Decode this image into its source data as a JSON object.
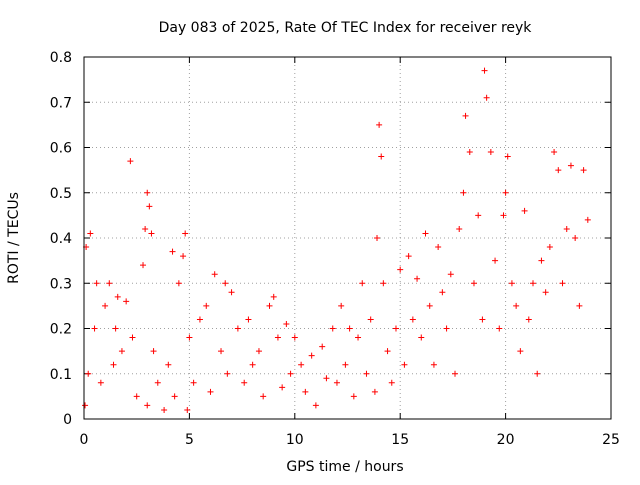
{
  "chart_data": {
    "type": "scatter",
    "title": "Day 083 of 2025, Rate Of TEC Index for receiver reyk",
    "xlabel": "GPS time / hours",
    "ylabel": "ROTI / TECUs",
    "xlim": [
      0,
      25
    ],
    "ylim": [
      0,
      0.8
    ],
    "x_ticks": [
      0,
      5,
      10,
      15,
      20,
      25
    ],
    "x_tick_labels": [
      "0",
      "5",
      "10",
      "15",
      "20",
      "25"
    ],
    "y_ticks": [
      0,
      0.1,
      0.2,
      0.3,
      0.4,
      0.5,
      0.6,
      0.7,
      0.8
    ],
    "y_tick_labels": [
      "0",
      "0.1",
      "0.2",
      "0.3",
      "0.4",
      "0.5",
      "0.6",
      "0.7",
      "0.8"
    ],
    "grid": true,
    "marker": "+",
    "marker_color": "#ff0000",
    "series": [
      {
        "x": [
          0.05,
          0.1,
          0.2,
          0.3,
          0.5,
          0.6,
          0.8,
          1.0,
          1.2,
          1.4,
          1.5,
          1.6,
          1.8,
          2.0,
          2.2,
          2.3,
          2.5,
          2.8,
          2.9,
          3.0,
          3.0,
          3.1,
          3.2,
          3.3,
          3.5,
          3.8,
          4.0,
          4.2,
          4.3,
          4.5,
          4.7,
          4.8,
          4.9,
          5.0,
          5.2,
          5.5,
          5.8,
          6.0,
          6.2,
          6.5,
          6.7,
          6.8,
          7.0,
          7.3,
          7.6,
          7.8,
          8.0,
          8.3,
          8.5,
          8.8,
          9.0,
          9.2,
          9.4,
          9.6,
          9.8,
          10.0,
          10.3,
          10.5,
          10.8,
          11.0,
          11.3,
          11.5,
          11.8,
          12.0,
          12.2,
          12.4,
          12.6,
          12.8,
          13.0,
          13.2,
          13.4,
          13.6,
          13.8,
          13.9,
          14.0,
          14.1,
          14.2,
          14.4,
          14.6,
          14.8,
          15.0,
          15.2,
          15.4,
          15.6,
          15.8,
          16.0,
          16.2,
          16.4,
          16.6,
          16.8,
          17.0,
          17.2,
          17.4,
          17.6,
          17.8,
          18.0,
          18.1,
          18.3,
          18.5,
          18.7,
          18.9,
          19.0,
          19.1,
          19.3,
          19.5,
          19.7,
          19.9,
          20.0,
          20.1,
          20.3,
          20.5,
          20.7,
          20.9,
          21.1,
          21.3,
          21.5,
          21.7,
          21.9,
          22.1,
          22.3,
          22.5,
          22.7,
          22.9,
          23.1,
          23.3,
          23.5,
          23.7,
          23.9
        ],
        "y": [
          0.03,
          0.38,
          0.1,
          0.41,
          0.2,
          0.3,
          0.08,
          0.25,
          0.3,
          0.12,
          0.2,
          0.27,
          0.15,
          0.26,
          0.57,
          0.18,
          0.05,
          0.34,
          0.42,
          0.5,
          0.03,
          0.47,
          0.41,
          0.15,
          0.08,
          0.02,
          0.12,
          0.37,
          0.05,
          0.3,
          0.36,
          0.41,
          0.02,
          0.18,
          0.08,
          0.22,
          0.25,
          0.06,
          0.32,
          0.15,
          0.3,
          0.1,
          0.28,
          0.2,
          0.08,
          0.22,
          0.12,
          0.15,
          0.05,
          0.25,
          0.27,
          0.18,
          0.07,
          0.21,
          0.1,
          0.18,
          0.12,
          0.06,
          0.14,
          0.03,
          0.16,
          0.09,
          0.2,
          0.08,
          0.25,
          0.12,
          0.2,
          0.05,
          0.18,
          0.3,
          0.1,
          0.22,
          0.06,
          0.4,
          0.65,
          0.58,
          0.3,
          0.15,
          0.08,
          0.2,
          0.33,
          0.12,
          0.36,
          0.22,
          0.31,
          0.18,
          0.41,
          0.25,
          0.12,
          0.38,
          0.28,
          0.2,
          0.32,
          0.1,
          0.42,
          0.5,
          0.67,
          0.59,
          0.3,
          0.45,
          0.22,
          0.77,
          0.71,
          0.59,
          0.35,
          0.2,
          0.45,
          0.5,
          0.58,
          0.3,
          0.25,
          0.15,
          0.46,
          0.22,
          0.3,
          0.1,
          0.35,
          0.28,
          0.38,
          0.59,
          0.55,
          0.3,
          0.42,
          0.56,
          0.4,
          0.25,
          0.55,
          0.44
        ]
      }
    ]
  }
}
